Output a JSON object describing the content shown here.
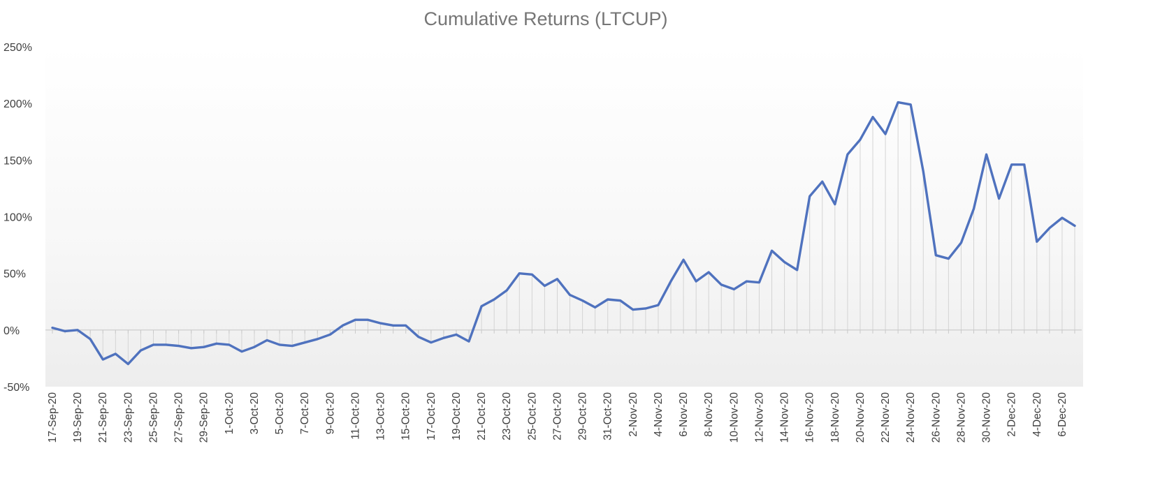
{
  "chart_data": {
    "type": "area",
    "title": "Cumulative Returns (LTCUP)",
    "xlabel": "",
    "ylabel": "",
    "ylim": [
      -50,
      250
    ],
    "y_ticks": [
      "250%",
      "200%",
      "150%",
      "100%",
      "50%",
      "0%",
      "-50%"
    ],
    "y_tick_values": [
      250,
      200,
      150,
      100,
      50,
      0,
      -50
    ],
    "x_tick_labels": [
      "17-Sep-20",
      "19-Sep-20",
      "21-Sep-20",
      "23-Sep-20",
      "25-Sep-20",
      "27-Sep-20",
      "29-Sep-20",
      "1-Oct-20",
      "3-Oct-20",
      "5-Oct-20",
      "7-Oct-20",
      "9-Oct-20",
      "11-Oct-20",
      "13-Oct-20",
      "15-Oct-20",
      "17-Oct-20",
      "19-Oct-20",
      "21-Oct-20",
      "23-Oct-20",
      "25-Oct-20",
      "27-Oct-20",
      "29-Oct-20",
      "31-Oct-20",
      "2-Nov-20",
      "4-Nov-20",
      "6-Nov-20",
      "8-Nov-20",
      "10-Nov-20",
      "12-Nov-20",
      "14-Nov-20",
      "16-Nov-20",
      "18-Nov-20",
      "20-Nov-20",
      "22-Nov-20",
      "24-Nov-20",
      "26-Nov-20",
      "28-Nov-20",
      "30-Nov-20",
      "2-Dec-20",
      "4-Dec-20",
      "6-Dec-20"
    ],
    "x_start": "17-Sep-20",
    "x_end": "7-Dec-20",
    "grid": false,
    "legend": "none",
    "series_color": "#4f72be",
    "series": [
      {
        "values": [
          2,
          -1,
          0,
          -8,
          -26,
          -21,
          -30,
          -18,
          -13,
          -13,
          -14,
          -16,
          -15,
          -12,
          -13,
          -19,
          -15,
          -9,
          -13,
          -14,
          -11,
          -8,
          -4,
          4,
          9,
          9,
          6,
          4,
          4,
          -6,
          -11,
          -7,
          -4,
          -10,
          21,
          27,
          35,
          50,
          49,
          39,
          45,
          31,
          26,
          20,
          27,
          26,
          18,
          19,
          22,
          43,
          62,
          43,
          51,
          40,
          36,
          43,
          42,
          70,
          60,
          53,
          118,
          131,
          111,
          155,
          168,
          188,
          173,
          201,
          199,
          140,
          66,
          63,
          77,
          107,
          155,
          116,
          146,
          146,
          78,
          90,
          99,
          92
        ]
      }
    ]
  }
}
